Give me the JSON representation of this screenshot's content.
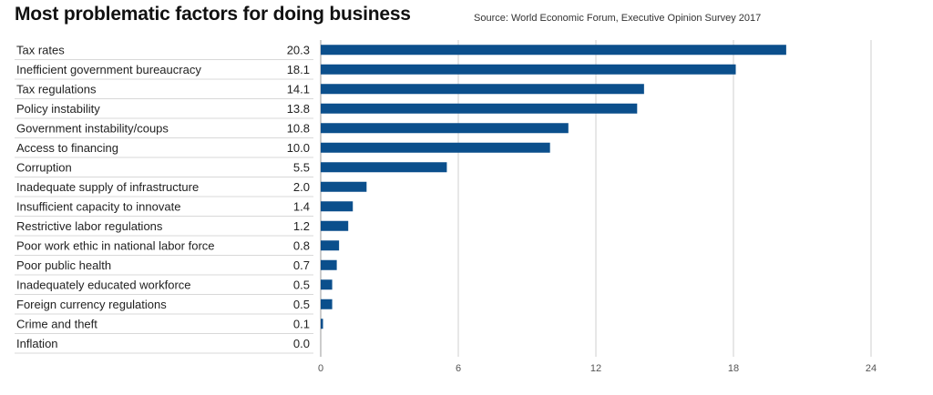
{
  "header": {
    "title": "Most problematic factors for doing business",
    "source": "Source: World Economic Forum, Executive Opinion Survey 2017"
  },
  "colors": {
    "bar": "#0b4f8c",
    "grid": "#cfcfcf",
    "row_line": "#d8d8d8"
  },
  "chart_data": {
    "type": "bar",
    "orientation": "horizontal",
    "title": "Most problematic factors for doing business",
    "xlim": [
      0,
      24
    ],
    "xticks": [
      0,
      6,
      12,
      18,
      24
    ],
    "grid": true,
    "categories": [
      "Tax rates",
      "Inefficient government bureaucracy",
      "Tax regulations",
      "Policy instability",
      "Government instability/coups",
      "Access to financing",
      "Corruption",
      "Inadequate supply of infrastructure",
      "Insufficient capacity to innovate",
      "Restrictive labor regulations",
      "Poor work ethic in national labor force",
      "Poor public health",
      "Inadequately educated workforce",
      "Foreign currency regulations",
      "Crime and theft",
      "Inflation"
    ],
    "value_labels": [
      "20.3",
      "18.1",
      "14.1",
      "13.8",
      "10.8",
      "10.0",
      "5.5",
      "2.0",
      "1.4",
      "1.2",
      "0.8",
      "0.7",
      "0.5",
      "0.5",
      "0.1",
      "0.0"
    ],
    "values": [
      20.3,
      18.1,
      14.1,
      13.8,
      10.8,
      10.0,
      5.5,
      2.0,
      1.4,
      1.2,
      0.8,
      0.7,
      0.5,
      0.5,
      0.1,
      0.0
    ]
  }
}
